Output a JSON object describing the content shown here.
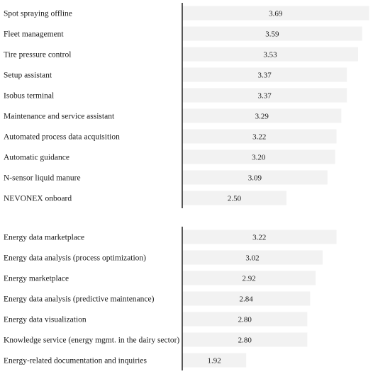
{
  "chart_data": [
    {
      "type": "bar",
      "orientation": "horizontal",
      "categories": [
        "Spot spraying offline",
        "Fleet management",
        "Tire pressure control",
        "Setup assistant",
        "Isobus terminal",
        "Maintenance and service assistant",
        "Automated process data acquisition",
        "Automatic guidance",
        "N-sensor liquid manure",
        "NEVONEX onboard"
      ],
      "values": [
        3.69,
        3.59,
        3.53,
        3.37,
        3.37,
        3.29,
        3.22,
        3.2,
        3.09,
        2.5
      ],
      "value_labels": [
        "3.69",
        "3.59",
        "3.53",
        "3.37",
        "3.37",
        "3.29",
        "3.22",
        "3.20",
        "3.09",
        "2.50"
      ],
      "xlim": [
        1,
        4
      ],
      "bar_color": "#f2f2f2",
      "axis_color": "#222222",
      "grid": false
    },
    {
      "type": "bar",
      "orientation": "horizontal",
      "categories": [
        "Energy data marketplace",
        "Energy data analysis (process optimization)",
        "Energy marketplace",
        "Energy data analysis (predictive maintenance)",
        "Energy data visualization",
        "Knowledge service (energy mgmt. in the dairy sector)",
        "Energy-related documentation and inquiries"
      ],
      "values": [
        3.22,
        3.02,
        2.92,
        2.84,
        2.8,
        2.8,
        1.92
      ],
      "value_labels": [
        "3.22",
        "3.02",
        "2.92",
        "2.84",
        "2.80",
        "2.80",
        "1.92"
      ],
      "xlim": [
        1,
        4
      ],
      "bar_color": "#f2f2f2",
      "axis_color": "#222222",
      "grid": false
    }
  ]
}
